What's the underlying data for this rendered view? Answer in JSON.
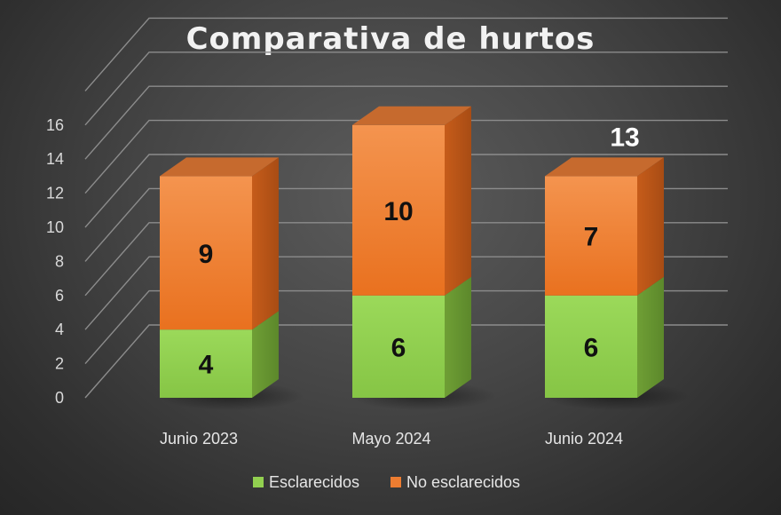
{
  "chart_data": {
    "type": "bar",
    "stacked": true,
    "three_d": true,
    "title": "Comparativa de hurtos",
    "categories": [
      "Junio 2023",
      "Mayo 2024",
      "Junio 2024"
    ],
    "series": [
      {
        "name": "Esclarecidos",
        "values": [
          4,
          6,
          6
        ],
        "color": "#92d050"
      },
      {
        "name": "No esclarecidos",
        "values": [
          9,
          10,
          7
        ],
        "color": "#ed7d31"
      }
    ],
    "ylim": [
      0,
      18
    ],
    "yticks": [
      0,
      2,
      4,
      6,
      8,
      10,
      12,
      14,
      16
    ],
    "grid": true,
    "legend": "bottom",
    "annotations": [
      {
        "text": "13",
        "category": "Junio 2024"
      }
    ]
  }
}
